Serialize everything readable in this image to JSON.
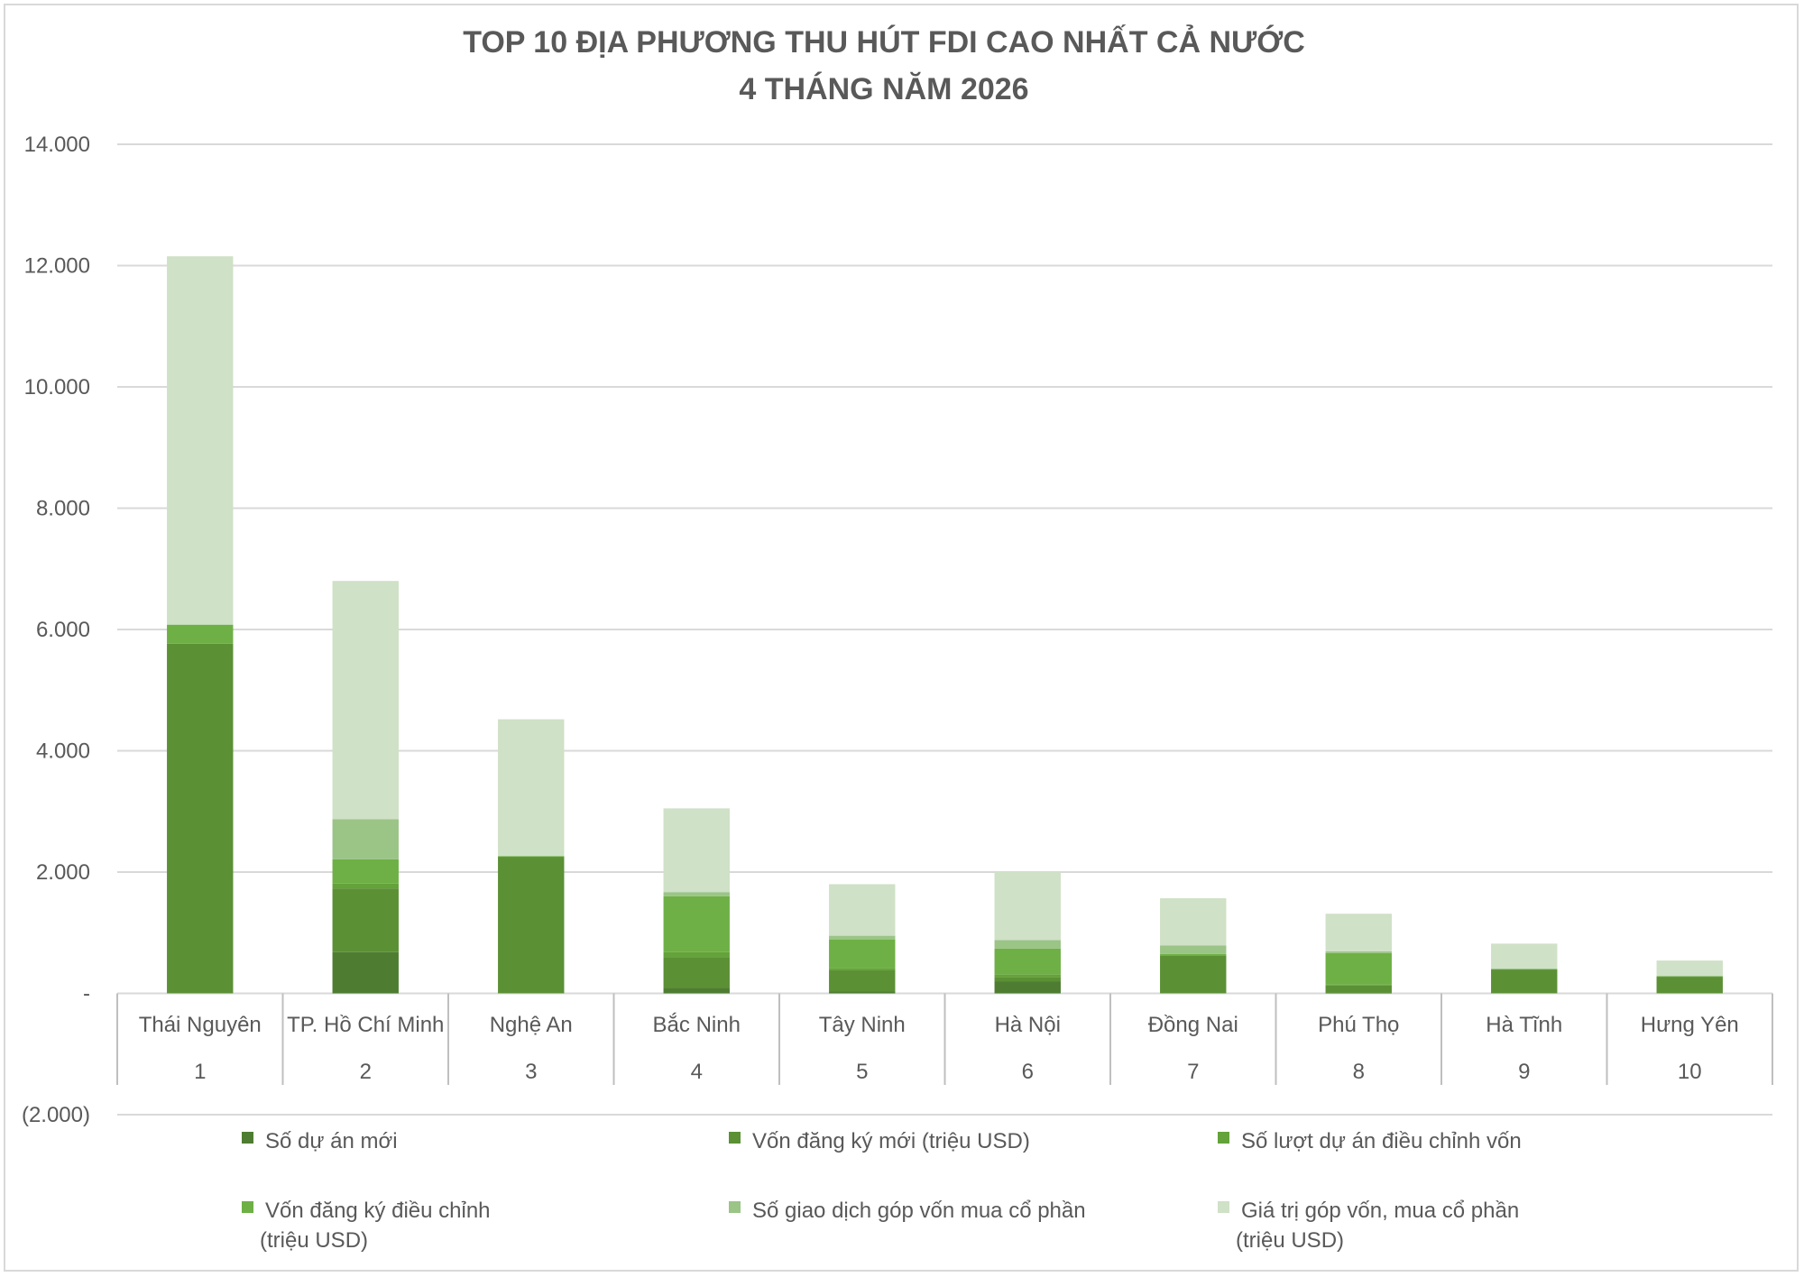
{
  "chart_data": {
    "type": "bar",
    "stacked": true,
    "title_line1": "TOP 10 ĐỊA PHƯƠNG THU HÚT FDI CAO NHẤT CẢ NƯỚC",
    "title_line2": "4 THÁNG NĂM 2026",
    "ylim": [
      -2000,
      14000
    ],
    "yticks": [
      {
        "value": 14000,
        "label": "14.000"
      },
      {
        "value": 12000,
        "label": "12.000"
      },
      {
        "value": 10000,
        "label": "10.000"
      },
      {
        "value": 8000,
        "label": "8.000"
      },
      {
        "value": 6000,
        "label": "6.000"
      },
      {
        "value": 4000,
        "label": "4.000"
      },
      {
        "value": 2000,
        "label": "2.000"
      },
      {
        "value": 0,
        "label": "-"
      },
      {
        "value": -2000,
        "label": "(2.000)"
      }
    ],
    "grid": true,
    "legend_position": "bottom",
    "categories": [
      "Thái Nguyên",
      "TP. Hồ Chí Minh",
      "Nghệ An",
      "Bắc Ninh",
      "Tây Ninh",
      "Hà Nội",
      "Đồng Nai",
      "Phú Thọ",
      "Hà Tĩnh",
      "Hưng Yên"
    ],
    "ranks": [
      "1",
      "2",
      "3",
      "4",
      "5",
      "6",
      "7",
      "8",
      "9",
      "10"
    ],
    "series": [
      {
        "name": "Số dự án mới",
        "color": "#4e7d32",
        "values": [
          5,
          680,
          2,
          90,
          30,
          200,
          5,
          8,
          3,
          4
        ]
      },
      {
        "name": "Vốn đăng ký mới (triệu USD)",
        "color": "#5b9035",
        "values": [
          5760,
          1050,
          2250,
          510,
          350,
          70,
          620,
          120,
          390,
          270
        ]
      },
      {
        "name": "Số lượt dự án điều chỉnh vốn",
        "color": "#64a23a",
        "values": [
          3,
          80,
          2,
          80,
          30,
          40,
          3,
          15,
          2,
          2
        ]
      },
      {
        "name": "Vốn đăng ký điều chỉnh\n(triệu USD)",
        "color": "#6eb045",
        "values": [
          310,
          400,
          10,
          920,
          480,
          430,
          20,
          520,
          5,
          5
        ]
      },
      {
        "name": "Số giao dịch góp vốn mua cổ phần",
        "color": "#9bc487",
        "values": [
          5,
          660,
          5,
          70,
          60,
          140,
          140,
          30,
          10,
          10
        ]
      },
      {
        "name": "Giá trị góp vốn, mua cổ phần\n(triệu USD)",
        "color": "#cfe1c6",
        "values": [
          6070,
          3930,
          2250,
          1380,
          850,
          1130,
          780,
          620,
          410,
          250
        ]
      }
    ]
  }
}
